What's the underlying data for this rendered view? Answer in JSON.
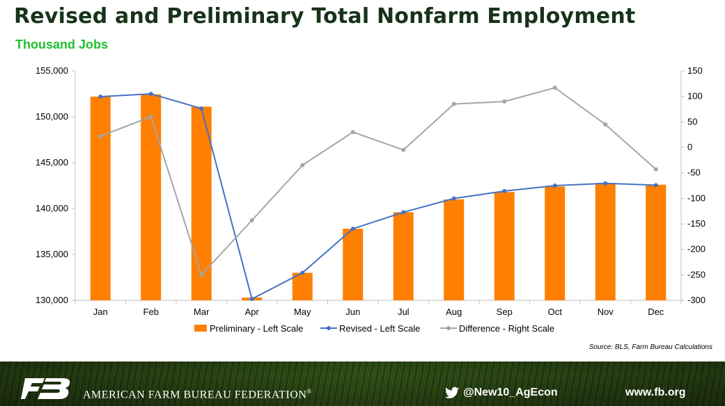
{
  "header": {
    "title": "Revised and Preliminary Total Nonfarm Employment",
    "subtitle": "Thousand Jobs"
  },
  "chart_data": {
    "type": "bar",
    "categories": [
      "Jan",
      "Feb",
      "Mar",
      "Apr",
      "May",
      "Jun",
      "Jul",
      "Aug",
      "Sep",
      "Oct",
      "Nov",
      "Dec"
    ],
    "left_axis": {
      "ylim": [
        130000,
        155000
      ],
      "ticks": [
        "130,000",
        "135,000",
        "140,000",
        "145,000",
        "150,000",
        "155,000"
      ],
      "tick_values": [
        130000,
        135000,
        140000,
        145000,
        150000,
        155000
      ]
    },
    "right_axis": {
      "ylim": [
        -300,
        150
      ],
      "ticks": [
        "-300",
        "-250",
        "-200",
        "-150",
        "-100",
        "-50",
        "0",
        "50",
        "100",
        "150"
      ],
      "tick_values": [
        -300,
        -250,
        -200,
        -150,
        -100,
        -50,
        0,
        50,
        100,
        150
      ]
    },
    "series": [
      {
        "name": "Preliminary - Left Scale",
        "kind": "bar",
        "axis": "left",
        "color": "#ff7f00",
        "values": [
          152200,
          152450,
          151100,
          130300,
          133000,
          137800,
          139600,
          141000,
          141800,
          142400,
          142800,
          142600
        ]
      },
      {
        "name": "Revised - Left Scale",
        "kind": "line",
        "axis": "left",
        "color": "#4472c4",
        "values": [
          152200,
          152500,
          150900,
          130150,
          133000,
          137800,
          139600,
          141100,
          141900,
          142500,
          142750,
          142550
        ]
      },
      {
        "name": "Difference - Right Scale",
        "kind": "line",
        "axis": "right",
        "color": "#a5a5a5",
        "values": [
          22,
          60,
          -250,
          -143,
          -35,
          30,
          -5,
          85,
          90,
          117,
          45,
          -43
        ]
      }
    ],
    "legend_position": "bottom",
    "grid": false
  },
  "source": "Source: BLS, Farm Bureau Calculations",
  "footer": {
    "organization": "AMERICAN FARM BUREAU FEDERATION",
    "registered": "®",
    "twitter_handle": "@New10_AgEcon",
    "website": "www.fb.org",
    "logo_text": "FB"
  }
}
